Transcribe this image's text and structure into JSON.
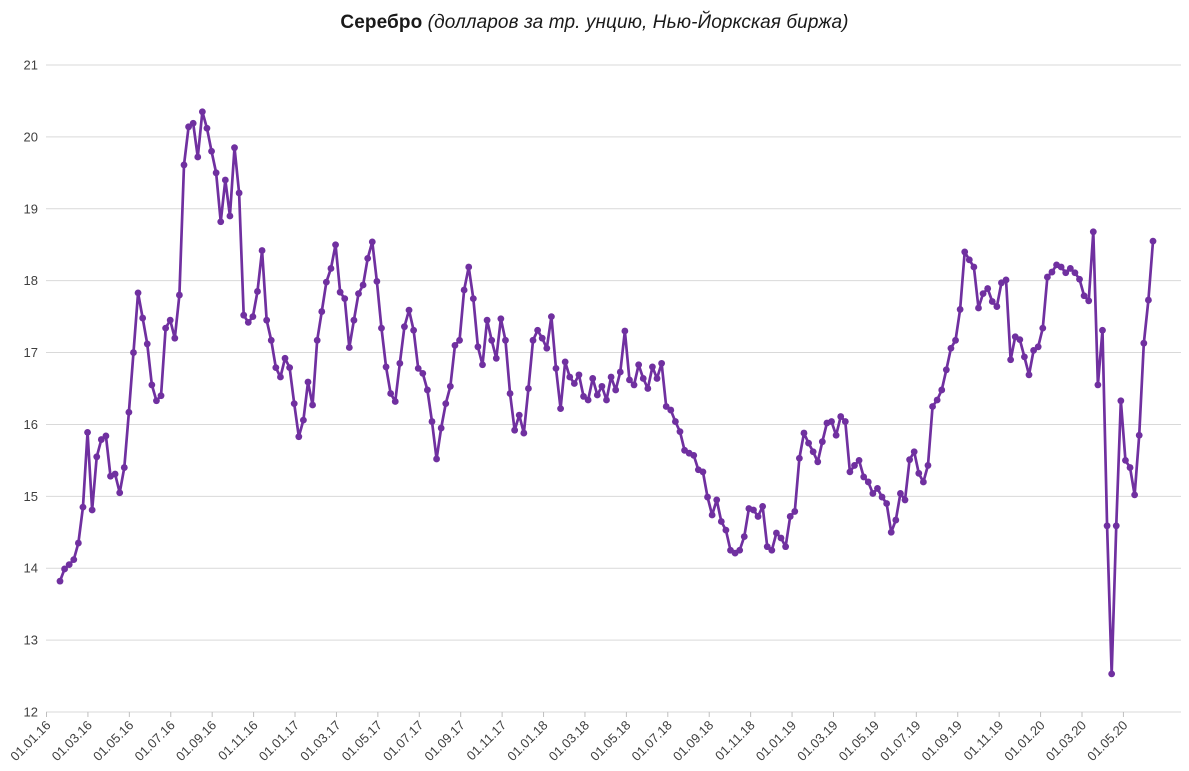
{
  "title": {
    "main": "Серебро",
    "subtitle": " (долларов за тр. унцию, Нью-Йоркская биржа)"
  },
  "chart_data": {
    "type": "line",
    "series_name": "Серебро, долларов за тройскую унцию",
    "frequency": "weekly",
    "legend": "none",
    "grid": "horizontal",
    "ylim": [
      12,
      21
    ],
    "y_ticks": [
      12,
      13,
      14,
      15,
      16,
      17,
      18,
      19,
      20,
      21
    ],
    "x_tick_labels": [
      "01.01.16",
      "01.03.16",
      "01.05.16",
      "01.07.16",
      "01.09.16",
      "01.11.16",
      "01.01.17",
      "01.03.17",
      "01.05.17",
      "01.07.17",
      "01.09.17",
      "01.11.17",
      "01.01.18",
      "01.03.18",
      "01.05.18",
      "01.07.18",
      "01.09.18",
      "01.11.18",
      "01.01.19",
      "01.03.19",
      "01.05.19",
      "01.07.19",
      "01.09.19",
      "01.11.19",
      "01.01.20",
      "01.03.20",
      "01.05.20"
    ],
    "values": [
      13.82,
      13.99,
      14.05,
      14.12,
      14.35,
      14.85,
      15.89,
      14.81,
      15.55,
      15.79,
      15.84,
      15.28,
      15.31,
      15.05,
      15.4,
      16.17,
      17.0,
      17.83,
      17.48,
      17.12,
      16.55,
      16.33,
      16.4,
      17.34,
      17.45,
      17.2,
      17.8,
      19.61,
      20.14,
      20.19,
      19.72,
      20.35,
      20.12,
      19.8,
      19.5,
      18.82,
      19.4,
      18.9,
      19.85,
      19.22,
      17.52,
      17.42,
      17.5,
      17.85,
      18.42,
      17.45,
      17.17,
      16.79,
      16.66,
      16.92,
      16.79,
      16.29,
      15.83,
      16.06,
      16.59,
      16.27,
      17.17,
      17.57,
      17.98,
      18.17,
      18.5,
      17.84,
      17.75,
      17.07,
      17.45,
      17.82,
      17.94,
      18.31,
      18.54,
      17.99,
      17.34,
      16.8,
      16.43,
      16.32,
      16.85,
      17.36,
      17.59,
      17.31,
      16.78,
      16.71,
      16.48,
      16.04,
      15.52,
      15.95,
      16.29,
      16.53,
      17.1,
      17.17,
      17.87,
      18.19,
      17.75,
      17.08,
      16.83,
      17.45,
      17.17,
      16.92,
      17.47,
      17.17,
      16.43,
      15.92,
      16.13,
      15.88,
      16.5,
      17.17,
      17.31,
      17.2,
      17.06,
      17.5,
      16.78,
      16.22,
      16.87,
      16.66,
      16.57,
      16.69,
      16.39,
      16.34,
      16.64,
      16.41,
      16.53,
      16.34,
      16.66,
      16.48,
      16.73,
      17.3,
      16.62,
      16.55,
      16.83,
      16.64,
      16.5,
      16.8,
      16.64,
      16.85,
      16.25,
      16.2,
      16.04,
      15.9,
      15.64,
      15.6,
      15.57,
      15.37,
      15.34,
      14.99,
      14.74,
      14.95,
      14.65,
      14.53,
      14.25,
      14.21,
      14.25,
      14.44,
      14.83,
      14.81,
      14.72,
      14.86,
      14.3,
      14.25,
      14.49,
      14.42,
      14.3,
      14.72,
      14.79,
      15.53,
      15.88,
      15.74,
      15.62,
      15.48,
      15.76,
      16.02,
      16.04,
      15.85,
      16.11,
      16.04,
      15.34,
      15.43,
      15.5,
      15.27,
      15.2,
      15.04,
      15.11,
      14.99,
      14.9,
      14.5,
      14.67,
      15.04,
      14.95,
      15.51,
      15.62,
      15.32,
      15.2,
      15.43,
      16.25,
      16.34,
      16.48,
      16.76,
      17.06,
      17.17,
      17.6,
      18.4,
      18.29,
      18.19,
      17.62,
      17.82,
      17.89,
      17.71,
      17.64,
      17.97,
      18.01,
      16.9,
      17.22,
      17.18,
      16.94,
      16.69,
      17.03,
      17.08,
      17.34,
      18.05,
      18.12,
      18.22,
      18.19,
      18.11,
      18.17,
      18.11,
      18.02,
      17.79,
      17.72,
      18.68,
      16.55,
      17.31,
      14.59,
      12.53,
      14.59,
      16.33,
      15.5,
      15.4,
      15.02,
      15.85,
      17.13,
      17.73,
      18.55
    ],
    "line_color": "#7030A0",
    "marker": "circle"
  },
  "colors": {
    "background": "#FFFFFF",
    "grid": "#D9D9D9",
    "axis_tick": "#BFBFBF",
    "axis_text": "#3F3F3F",
    "title_text": "#1A1A1A"
  }
}
